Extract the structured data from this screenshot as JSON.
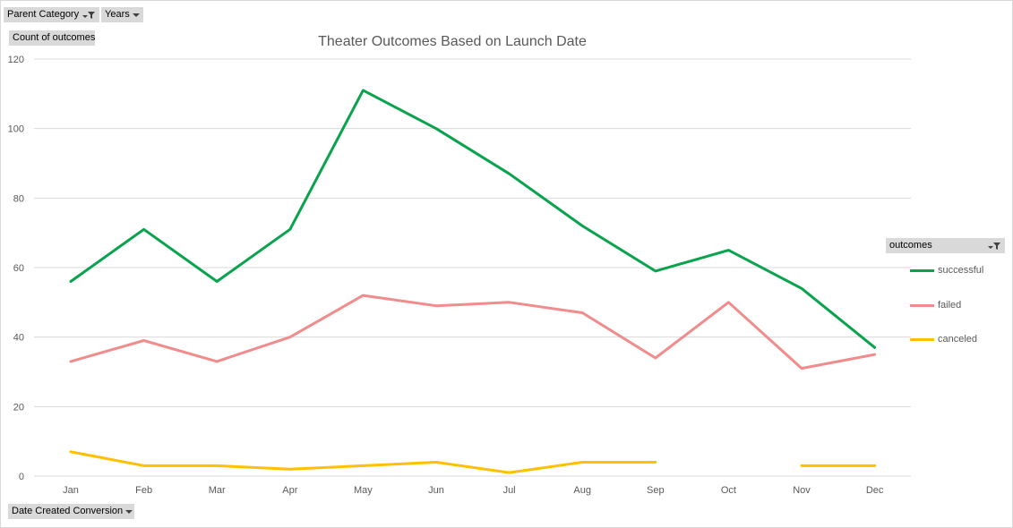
{
  "filters": {
    "parent_category": "Parent Category",
    "years": "Years",
    "values_field": "Count of outcomes",
    "axis_field": "Date Created Conversion",
    "legend_field": "outcomes"
  },
  "colors": {
    "successful": "#0aa34d",
    "failed": "#f08c8c",
    "canceled": "#ffc000",
    "gridline": "#d9d9d9",
    "axis_text": "#595959",
    "button_bg": "#d9d9d9"
  },
  "chart_data": {
    "type": "line",
    "title": "Theater Outcomes Based on Launch Date",
    "xlabel": "",
    "ylabel": "",
    "categories": [
      "Jan",
      "Feb",
      "Mar",
      "Apr",
      "May",
      "Jun",
      "Jul",
      "Aug",
      "Sep",
      "Oct",
      "Nov",
      "Dec"
    ],
    "ylim": [
      0,
      120
    ],
    "yticks": [
      0,
      20,
      40,
      60,
      80,
      100,
      120
    ],
    "grid": true,
    "legend_position": "right",
    "series": [
      {
        "name": "successful",
        "values": [
          56,
          71,
          56,
          71,
          111,
          100,
          87,
          72,
          59,
          65,
          54,
          37
        ]
      },
      {
        "name": "failed",
        "values": [
          33,
          39,
          33,
          40,
          52,
          49,
          50,
          47,
          34,
          50,
          31,
          35
        ]
      },
      {
        "name": "canceled",
        "values": [
          7,
          3,
          3,
          2,
          3,
          4,
          1,
          4,
          4,
          null,
          3,
          3
        ]
      }
    ]
  }
}
